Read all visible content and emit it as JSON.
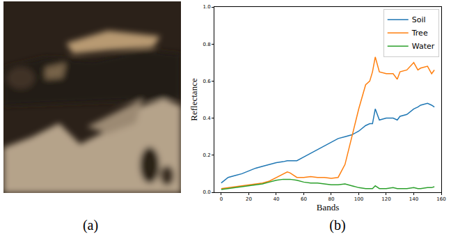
{
  "image_panel": {
    "caption": "(a)"
  },
  "chart_data": {
    "type": "line",
    "caption": "(b)",
    "x_label": "Bands",
    "y_label": "Reflectance",
    "x": [
      0,
      5,
      10,
      15,
      20,
      25,
      30,
      35,
      40,
      45,
      48,
      50,
      55,
      60,
      65,
      70,
      75,
      80,
      85,
      90,
      95,
      100,
      105,
      108,
      110,
      112,
      115,
      120,
      125,
      128,
      130,
      135,
      140,
      143,
      145,
      150,
      153,
      155
    ],
    "series": [
      {
        "name": "Soil",
        "color": "#1f77b4",
        "values": [
          0.05,
          0.08,
          0.09,
          0.1,
          0.115,
          0.13,
          0.14,
          0.15,
          0.16,
          0.165,
          0.17,
          0.17,
          0.17,
          0.19,
          0.21,
          0.23,
          0.25,
          0.27,
          0.29,
          0.3,
          0.31,
          0.33,
          0.36,
          0.37,
          0.37,
          0.45,
          0.39,
          0.4,
          0.4,
          0.39,
          0.41,
          0.42,
          0.45,
          0.46,
          0.47,
          0.48,
          0.47,
          0.46
        ]
      },
      {
        "name": "Tree",
        "color": "#ff7f0e",
        "values": [
          0.02,
          0.025,
          0.03,
          0.035,
          0.04,
          0.045,
          0.05,
          0.06,
          0.08,
          0.1,
          0.11,
          0.105,
          0.08,
          0.08,
          0.085,
          0.08,
          0.08,
          0.075,
          0.08,
          0.15,
          0.3,
          0.45,
          0.58,
          0.6,
          0.65,
          0.73,
          0.65,
          0.64,
          0.64,
          0.61,
          0.65,
          0.66,
          0.7,
          0.66,
          0.67,
          0.68,
          0.64,
          0.66
        ]
      },
      {
        "name": "Water",
        "color": "#2ca02c",
        "values": [
          0.015,
          0.02,
          0.025,
          0.03,
          0.035,
          0.04,
          0.045,
          0.055,
          0.065,
          0.07,
          0.07,
          0.07,
          0.065,
          0.055,
          0.05,
          0.05,
          0.045,
          0.04,
          0.04,
          0.045,
          0.035,
          0.025,
          0.02,
          0.02,
          0.02,
          0.035,
          0.02,
          0.02,
          0.025,
          0.02,
          0.02,
          0.02,
          0.025,
          0.02,
          0.02,
          0.025,
          0.025,
          0.03
        ]
      }
    ],
    "xlim": [
      -5,
      160
    ],
    "xticks": [
      0,
      20,
      40,
      60,
      80,
      100,
      120,
      140,
      160
    ],
    "ylim": [
      0,
      1
    ],
    "yticks": [
      {
        "value": 0,
        "label": "0.0"
      },
      0.2,
      0.4,
      0.6,
      0.8,
      {
        "value": 1,
        "label": "1.0"
      }
    ],
    "grid": false,
    "legend": "upper right"
  }
}
